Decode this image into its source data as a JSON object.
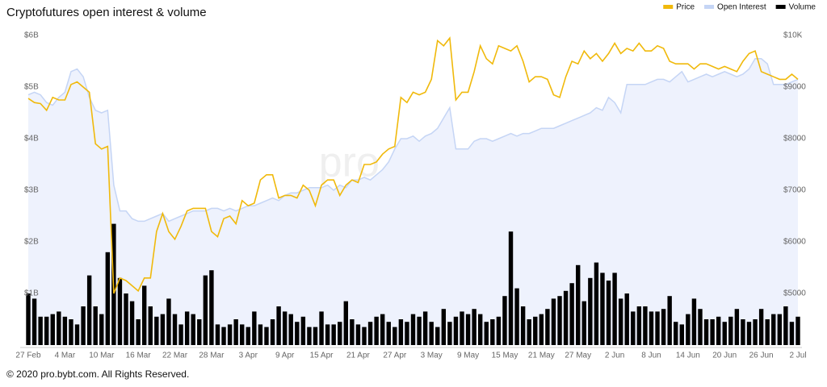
{
  "chart_data": {
    "type": "combo",
    "title": "Cryptofutures open interest & volume",
    "watermark": "pro.bybt.com",
    "footer": "© 2020 pro.bybt.com. All Rights Reserved.",
    "legend": "top-right",
    "categories": [
      "27 Feb",
      null,
      null,
      null,
      null,
      null,
      "4 Mar",
      null,
      null,
      null,
      null,
      null,
      "10 Mar",
      null,
      null,
      null,
      null,
      null,
      "16 Mar",
      null,
      null,
      null,
      null,
      null,
      "22 Mar",
      null,
      null,
      null,
      null,
      null,
      "28 Mar",
      null,
      null,
      null,
      null,
      null,
      "3 Apr",
      null,
      null,
      null,
      null,
      null,
      "9 Apr",
      null,
      null,
      null,
      null,
      null,
      "15 Apr",
      null,
      null,
      null,
      null,
      null,
      "21 Apr",
      null,
      null,
      null,
      null,
      null,
      "27 Apr",
      null,
      null,
      null,
      null,
      null,
      "3 May",
      null,
      null,
      null,
      null,
      null,
      "9 May",
      null,
      null,
      null,
      null,
      null,
      "15 May",
      null,
      null,
      null,
      null,
      null,
      "21 May",
      null,
      null,
      null,
      null,
      null,
      "27 May",
      null,
      null,
      null,
      null,
      null,
      "2 Jun",
      null,
      null,
      null,
      null,
      null,
      "8 Jun",
      null,
      null,
      null,
      null,
      null,
      "14 Jun",
      null,
      null,
      null,
      null,
      null,
      "20 Jun",
      null,
      null,
      null,
      null,
      null,
      "26 Jun",
      null,
      null,
      null,
      null,
      null,
      "2 Jul"
    ],
    "ylim": [
      0,
      6
    ],
    "yticks": [
      {
        "value": 1,
        "label": "$1B"
      },
      {
        "value": 2,
        "label": "$2B"
      },
      {
        "value": 3,
        "label": "$3B"
      },
      {
        "value": 4,
        "label": "$4B"
      },
      {
        "value": 5,
        "label": "$5B"
      },
      {
        "value": 6,
        "label": "$6B"
      }
    ],
    "y2lim": [
      4000,
      10000
    ],
    "y2ticks": [
      {
        "value": 5000,
        "label": "$5000"
      },
      {
        "value": 6000,
        "label": "$6000"
      },
      {
        "value": 7000,
        "label": "$7000"
      },
      {
        "value": 8000,
        "label": "$8000"
      },
      {
        "value": 9000,
        "label": "$9000"
      },
      {
        "value": 10000,
        "label": "$10K"
      }
    ],
    "series": [
      {
        "name": "Price",
        "type": "line",
        "axis": "y2",
        "color": "#f0b90b",
        "values": [
          8780,
          8700,
          8680,
          8550,
          8800,
          8750,
          8750,
          9050,
          9100,
          9000,
          8900,
          7900,
          7800,
          7850,
          5000,
          5300,
          5250,
          5150,
          5050,
          5300,
          5300,
          6200,
          6550,
          6200,
          6050,
          6300,
          6600,
          6650,
          6650,
          6650,
          6200,
          6100,
          6450,
          6500,
          6350,
          6800,
          6700,
          6750,
          7200,
          7300,
          7300,
          6850,
          6900,
          6900,
          6850,
          7100,
          7000,
          6700,
          7100,
          7200,
          7200,
          6900,
          7100,
          7200,
          7150,
          7500,
          7500,
          7550,
          7700,
          7800,
          7850,
          8800,
          8700,
          8900,
          8850,
          8900,
          9150,
          9900,
          9800,
          9950,
          8750,
          8900,
          8900,
          9300,
          9800,
          9550,
          9450,
          9800,
          9750,
          9700,
          9800,
          9500,
          9100,
          9200,
          9200,
          9150,
          8850,
          8800,
          9200,
          9500,
          9450,
          9700,
          9550,
          9650,
          9500,
          9650,
          9850,
          9650,
          9750,
          9700,
          9850,
          9700,
          9700,
          9800,
          9750,
          9500,
          9450,
          9450,
          9450,
          9350,
          9450,
          9450,
          9400,
          9350,
          9400,
          9350,
          9300,
          9500,
          9650,
          9700,
          9300,
          9250,
          9200,
          9150,
          9150,
          9250,
          9150
        ]
      },
      {
        "name": "Open Interest",
        "type": "area",
        "color": "#c5d5f5",
        "fill": "#eef2fd",
        "values": [
          4.85,
          4.9,
          4.85,
          4.7,
          4.65,
          4.8,
          4.9,
          5.3,
          5.35,
          5.2,
          4.8,
          4.55,
          4.5,
          4.55,
          3.1,
          2.6,
          2.6,
          2.45,
          2.4,
          2.4,
          2.45,
          2.5,
          2.55,
          2.4,
          2.45,
          2.5,
          2.55,
          2.6,
          2.6,
          2.6,
          2.65,
          2.65,
          2.6,
          2.65,
          2.6,
          2.65,
          2.7,
          2.7,
          2.75,
          2.8,
          2.85,
          2.8,
          2.9,
          2.95,
          2.95,
          3.0,
          3.05,
          3.05,
          3.05,
          3.1,
          3.0,
          3.1,
          3.05,
          3.2,
          3.2,
          3.25,
          3.2,
          3.3,
          3.4,
          3.55,
          3.8,
          4.0,
          4.0,
          4.05,
          3.95,
          4.05,
          4.1,
          4.2,
          4.4,
          4.6,
          3.8,
          3.8,
          3.8,
          3.95,
          4.0,
          4.0,
          3.95,
          4.0,
          4.05,
          4.1,
          4.05,
          4.1,
          4.1,
          4.15,
          4.2,
          4.2,
          4.2,
          4.25,
          4.3,
          4.35,
          4.4,
          4.45,
          4.5,
          4.6,
          4.55,
          4.8,
          4.7,
          4.5,
          5.05,
          5.05,
          5.05,
          5.05,
          5.1,
          5.15,
          5.15,
          5.1,
          5.2,
          5.3,
          5.1,
          5.15,
          5.2,
          5.25,
          5.2,
          5.25,
          5.3,
          5.25,
          5.2,
          5.25,
          5.35,
          5.55,
          5.55,
          5.45,
          5.05,
          5.05,
          5.05,
          5.1,
          5.15
        ]
      },
      {
        "name": "Volume",
        "type": "bar",
        "color": "#000000",
        "values": [
          1.0,
          0.9,
          0.55,
          0.55,
          0.6,
          0.65,
          0.55,
          0.5,
          0.4,
          0.75,
          1.35,
          0.75,
          0.6,
          1.8,
          2.35,
          1.3,
          1.0,
          0.85,
          0.5,
          1.15,
          0.75,
          0.55,
          0.6,
          0.9,
          0.6,
          0.4,
          0.65,
          0.6,
          0.5,
          1.35,
          1.45,
          0.4,
          0.35,
          0.4,
          0.5,
          0.4,
          0.35,
          0.65,
          0.4,
          0.35,
          0.5,
          0.75,
          0.65,
          0.6,
          0.45,
          0.55,
          0.35,
          0.35,
          0.65,
          0.4,
          0.4,
          0.45,
          0.85,
          0.5,
          0.4,
          0.35,
          0.45,
          0.55,
          0.6,
          0.45,
          0.35,
          0.5,
          0.45,
          0.6,
          0.55,
          0.65,
          0.45,
          0.35,
          0.7,
          0.45,
          0.55,
          0.65,
          0.6,
          0.7,
          0.6,
          0.45,
          0.5,
          0.55,
          0.95,
          2.2,
          1.1,
          0.75,
          0.5,
          0.55,
          0.6,
          0.7,
          0.9,
          0.95,
          1.05,
          1.2,
          1.55,
          0.85,
          1.3,
          1.6,
          1.4,
          1.25,
          1.4,
          0.9,
          1.0,
          0.65,
          0.75,
          0.75,
          0.65,
          0.65,
          0.7,
          0.95,
          0.45,
          0.4,
          0.6,
          0.9,
          0.7,
          0.5,
          0.5,
          0.55,
          0.45,
          0.55,
          0.7,
          0.5,
          0.45,
          0.5,
          0.7,
          0.5,
          0.6,
          0.6,
          0.75,
          0.45,
          0.55
        ]
      }
    ]
  }
}
